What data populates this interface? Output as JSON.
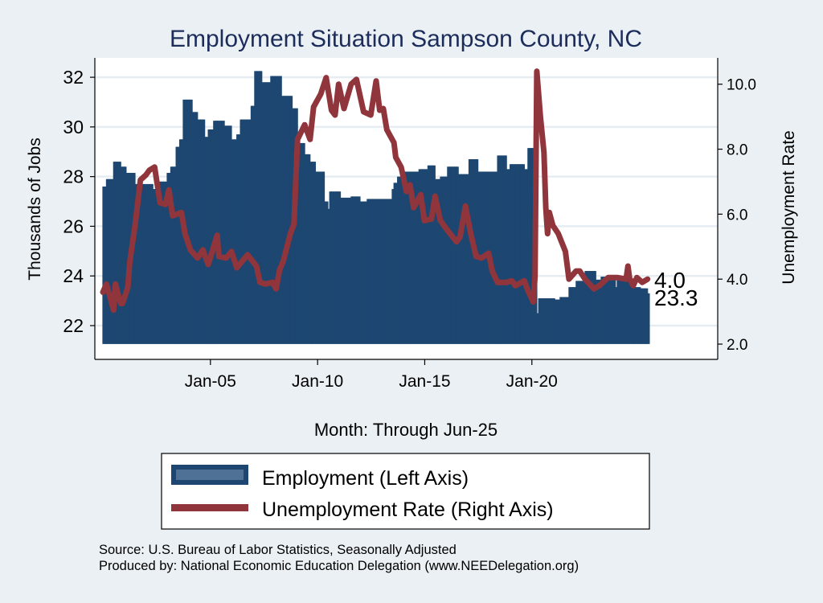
{
  "chart_data": {
    "type": "bar+line",
    "title": "Employment Situation Sampson  County, NC",
    "xlabel": "Month: Through Jun-25",
    "ylabel_left": "Thousands of Jobs",
    "ylabel_right": "Unemployment Rate",
    "x_range": [
      "2000-01",
      "2025-06"
    ],
    "x_ticks": [
      {
        "date": "2005-01",
        "label": "Jan-05"
      },
      {
        "date": "2010-01",
        "label": "Jan-10"
      },
      {
        "date": "2015-01",
        "label": "Jan-15"
      },
      {
        "date": "2020-01",
        "label": "Jan-20"
      }
    ],
    "ylim_left": [
      20.64,
      32.78
    ],
    "yticks_left": [
      {
        "v": 22,
        "label": "22"
      },
      {
        "v": 24,
        "label": "24"
      },
      {
        "v": 26,
        "label": "26"
      },
      {
        "v": 28,
        "label": "28"
      },
      {
        "v": 30,
        "label": "30"
      },
      {
        "v": 32,
        "label": "32"
      }
    ],
    "bar_base_left": 21.26,
    "ylim_right": [
      1.53,
      10.81
    ],
    "yticks_right": [
      {
        "v": 2,
        "label": "2.0"
      },
      {
        "v": 4,
        "label": "4.0"
      },
      {
        "v": 6,
        "label": "6.0"
      },
      {
        "v": 8,
        "label": "8.0"
      },
      {
        "v": 10,
        "label": "10.0"
      }
    ],
    "grid": true,
    "legend_position": "bottom",
    "colors": {
      "employment": "#1d4771",
      "unemployment": "#90353b",
      "legend_inner": "#4f7196"
    },
    "series": [
      {
        "name": "Employment (Left Axis)",
        "type": "bar",
        "axis": "left",
        "note": "step changes; value holds until next entry",
        "points": [
          [
            "2000-01",
            27.6
          ],
          [
            "2000-03",
            27.9
          ],
          [
            "2000-07",
            28.6
          ],
          [
            "2000-11",
            28.4
          ],
          [
            "2001-02",
            28.15
          ],
          [
            "2001-07",
            27.7
          ],
          [
            "2002-05",
            27.5
          ],
          [
            "2002-09",
            27.8
          ],
          [
            "2003-01",
            28.15
          ],
          [
            "2003-03",
            28.4
          ],
          [
            "2003-06",
            29.2
          ],
          [
            "2003-08",
            29.5
          ],
          [
            "2003-10",
            31.1
          ],
          [
            "2004-03",
            30.6
          ],
          [
            "2004-06",
            30.3
          ],
          [
            "2004-10",
            29.6
          ],
          [
            "2004-12",
            29.9
          ],
          [
            "2005-03",
            30.25
          ],
          [
            "2005-09",
            30.05
          ],
          [
            "2006-01",
            29.5
          ],
          [
            "2006-04",
            29.7
          ],
          [
            "2006-06",
            30.3
          ],
          [
            "2006-12",
            30.85
          ],
          [
            "2007-02",
            32.25
          ],
          [
            "2007-06",
            31.8
          ],
          [
            "2007-11",
            32.05
          ],
          [
            "2008-05",
            31.25
          ],
          [
            "2008-11",
            30.75
          ],
          [
            "2009-02",
            29.35
          ],
          [
            "2009-06",
            28.9
          ],
          [
            "2009-09",
            28.6
          ],
          [
            "2009-12",
            28.2
          ],
          [
            "2010-05",
            27.0
          ],
          [
            "2010-07",
            26.7
          ],
          [
            "2010-08",
            27.4
          ],
          [
            "2011-02",
            27.15
          ],
          [
            "2011-08",
            27.2
          ],
          [
            "2012-01",
            27.0
          ],
          [
            "2012-05",
            27.1
          ],
          [
            "2013-07",
            27.5
          ],
          [
            "2013-08",
            27.75
          ],
          [
            "2013-10",
            28.0
          ],
          [
            "2013-12",
            28.2
          ],
          [
            "2014-10",
            28.3
          ],
          [
            "2015-03",
            28.45
          ],
          [
            "2015-07",
            27.9
          ],
          [
            "2015-10",
            28.0
          ],
          [
            "2016-02",
            28.4
          ],
          [
            "2016-08",
            28.1
          ],
          [
            "2017-02",
            28.7
          ],
          [
            "2017-07",
            28.2
          ],
          [
            "2018-06",
            28.85
          ],
          [
            "2018-11",
            28.3
          ],
          [
            "2019-01",
            28.5
          ],
          [
            "2019-09",
            28.3
          ],
          [
            "2019-11",
            29.15
          ],
          [
            "2020-04",
            22.5
          ],
          [
            "2020-05",
            23.1
          ],
          [
            "2021-02",
            23.05
          ],
          [
            "2021-05",
            23.15
          ],
          [
            "2021-10",
            23.55
          ],
          [
            "2022-02",
            23.8
          ],
          [
            "2022-07",
            24.2
          ],
          [
            "2023-01",
            23.85
          ],
          [
            "2023-04",
            23.97
          ],
          [
            "2023-12",
            23.55
          ],
          [
            "2024-01",
            23.9
          ],
          [
            "2024-10",
            23.55
          ],
          [
            "2025-02",
            23.5
          ],
          [
            "2025-06",
            23.3
          ]
        ],
        "last_value_label": "23.3"
      },
      {
        "name": "Unemployment Rate (Right Axis)",
        "type": "line",
        "axis": "right",
        "points": [
          [
            "2000-01",
            3.6
          ],
          [
            "2000-03",
            3.85
          ],
          [
            "2000-07",
            3.05
          ],
          [
            "2000-08",
            3.85
          ],
          [
            "2000-11",
            3.25
          ],
          [
            "2000-12",
            3.25
          ],
          [
            "2001-03",
            3.75
          ],
          [
            "2001-04",
            4.5
          ],
          [
            "2001-07",
            5.65
          ],
          [
            "2001-10",
            7.05
          ],
          [
            "2002-01",
            7.2
          ],
          [
            "2002-03",
            7.35
          ],
          [
            "2002-06",
            7.45
          ],
          [
            "2002-09",
            6.35
          ],
          [
            "2002-12",
            6.3
          ],
          [
            "2003-02",
            6.75
          ],
          [
            "2003-04",
            5.95
          ],
          [
            "2003-09",
            6.05
          ],
          [
            "2003-11",
            5.4
          ],
          [
            "2004-02",
            4.9
          ],
          [
            "2004-06",
            4.65
          ],
          [
            "2004-09",
            4.9
          ],
          [
            "2004-12",
            4.45
          ],
          [
            "2005-05",
            5.35
          ],
          [
            "2005-06",
            4.7
          ],
          [
            "2005-10",
            4.65
          ],
          [
            "2006-01",
            4.85
          ],
          [
            "2006-04",
            4.35
          ],
          [
            "2006-10",
            4.75
          ],
          [
            "2007-03",
            4.4
          ],
          [
            "2007-05",
            3.9
          ],
          [
            "2007-08",
            3.85
          ],
          [
            "2007-12",
            3.9
          ],
          [
            "2008-02",
            3.7
          ],
          [
            "2008-04",
            4.3
          ],
          [
            "2008-06",
            4.55
          ],
          [
            "2008-10",
            5.4
          ],
          [
            "2008-12",
            5.7
          ],
          [
            "2009-02",
            8.3
          ],
          [
            "2009-06",
            8.75
          ],
          [
            "2009-09",
            8.3
          ],
          [
            "2009-11",
            9.3
          ],
          [
            "2010-03",
            9.7
          ],
          [
            "2010-06",
            10.2
          ],
          [
            "2010-09",
            9.2
          ],
          [
            "2010-11",
            9.05
          ],
          [
            "2011-01",
            10.0
          ],
          [
            "2011-04",
            9.25
          ],
          [
            "2011-08",
            10.0
          ],
          [
            "2011-11",
            10.15
          ],
          [
            "2012-03",
            9.15
          ],
          [
            "2012-07",
            9.05
          ],
          [
            "2012-10",
            10.1
          ],
          [
            "2012-12",
            9.2
          ],
          [
            "2013-02",
            9.25
          ],
          [
            "2013-04",
            8.6
          ],
          [
            "2013-08",
            8.2
          ],
          [
            "2013-09",
            7.75
          ],
          [
            "2013-12",
            7.45
          ],
          [
            "2014-03",
            6.7
          ],
          [
            "2014-05",
            6.9
          ],
          [
            "2014-07",
            6.2
          ],
          [
            "2014-11",
            6.6
          ],
          [
            "2015-01",
            5.8
          ],
          [
            "2015-05",
            5.85
          ],
          [
            "2015-07",
            6.55
          ],
          [
            "2015-10",
            5.8
          ],
          [
            "2016-02",
            5.5
          ],
          [
            "2016-07",
            5.15
          ],
          [
            "2016-09",
            5.3
          ],
          [
            "2016-12",
            6.25
          ],
          [
            "2017-03",
            5.4
          ],
          [
            "2017-06",
            4.7
          ],
          [
            "2017-09",
            4.65
          ],
          [
            "2018-01",
            4.8
          ],
          [
            "2018-03",
            4.25
          ],
          [
            "2018-06",
            3.9
          ],
          [
            "2018-11",
            3.9
          ],
          [
            "2019-02",
            3.95
          ],
          [
            "2019-04",
            3.8
          ],
          [
            "2019-09",
            3.95
          ],
          [
            "2019-11",
            3.65
          ],
          [
            "2020-02",
            3.3
          ],
          [
            "2020-03",
            4.1
          ],
          [
            "2020-04",
            10.4
          ],
          [
            "2020-06",
            9.0
          ],
          [
            "2020-08",
            7.9
          ],
          [
            "2020-09",
            6.2
          ],
          [
            "2020-10",
            5.4
          ],
          [
            "2020-11",
            6.05
          ],
          [
            "2021-01",
            5.65
          ],
          [
            "2021-04",
            5.4
          ],
          [
            "2021-08",
            4.85
          ],
          [
            "2021-10",
            4.0
          ],
          [
            "2022-02",
            4.25
          ],
          [
            "2022-04",
            4.25
          ],
          [
            "2022-07",
            4.0
          ],
          [
            "2022-12",
            3.7
          ],
          [
            "2023-03",
            3.8
          ],
          [
            "2023-08",
            4.05
          ],
          [
            "2024-01",
            4.05
          ],
          [
            "2024-06",
            4.0
          ],
          [
            "2024-07",
            4.4
          ],
          [
            "2024-08",
            4.0
          ],
          [
            "2024-10",
            3.8
          ],
          [
            "2024-12",
            4.05
          ],
          [
            "2025-03",
            3.9
          ],
          [
            "2025-06",
            4.0
          ]
        ],
        "last_value_label": "4.0"
      }
    ]
  },
  "legend": {
    "employment": "Employment (Left Axis)",
    "unemployment": "Unemployment Rate (Right Axis)"
  },
  "footer": {
    "source": "Source: U.S. Bureau of Labor Statistics, Seasonally Adjusted",
    "produced": "Produced by: National Economic Education Delegation (www.NEEDelegation.org)"
  }
}
